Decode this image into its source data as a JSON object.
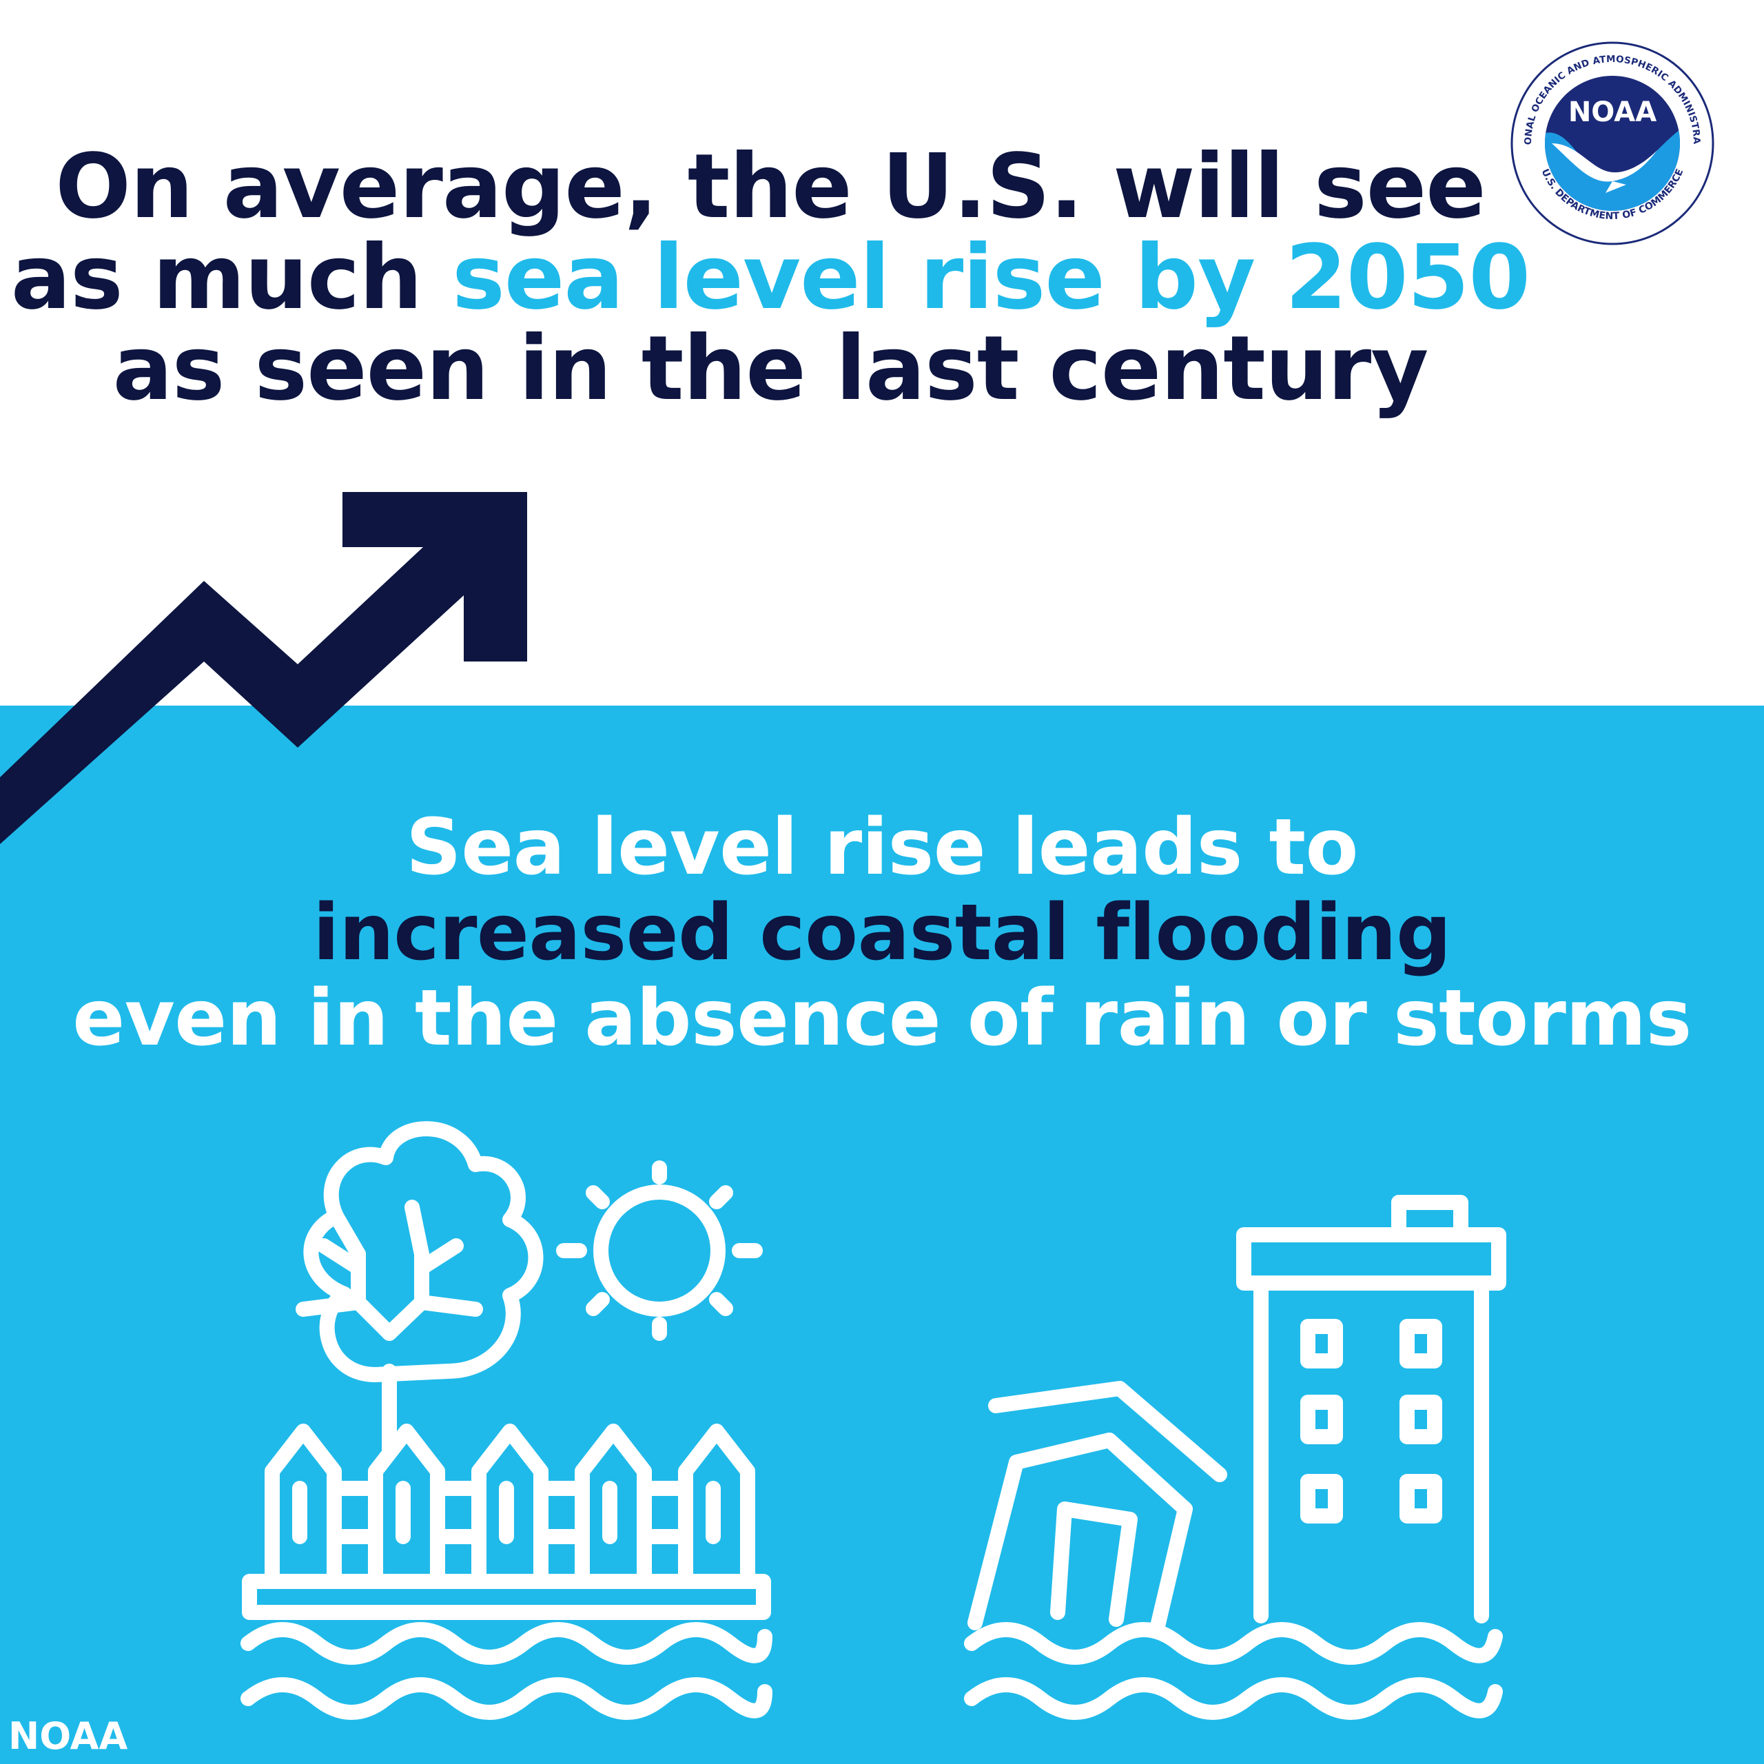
{
  "headline": {
    "line1": "On average, the U.S. will see",
    "line2_prefix": "as much ",
    "line2_highlight": "sea level rise by 2050",
    "line3": "as seen in the last century"
  },
  "subhead": {
    "line1": "Sea level rise leads to",
    "line2": "increased coastal flooding",
    "line3": "even in the absence of rain or storms"
  },
  "logo": {
    "center_text": "NOAA",
    "ring_text_top": "NATIONAL OCEANIC AND ATMOSPHERIC ADMINISTRATION",
    "ring_text_bottom": "U.S. DEPARTMENT OF COMMERCE"
  },
  "footer": {
    "credit": "NOAA"
  },
  "colors": {
    "navy": "#0d1540",
    "sky_blue": "#1fbaea",
    "white": "#ffffff"
  },
  "icons": [
    "trend-up-arrow-icon",
    "tree-icon",
    "sun-icon",
    "fence-icon",
    "flooded-house-icon",
    "building-icon",
    "waves-icon"
  ]
}
